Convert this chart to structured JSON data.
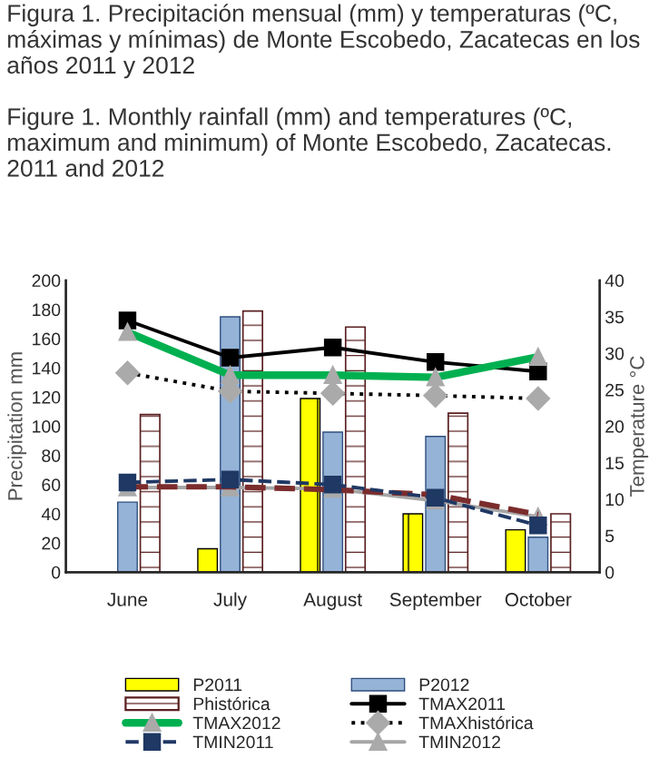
{
  "chart_data": {
    "type": "bar",
    "title": "Figura 1. Precipitación mensual (mm) y temperaturas (ºC, máximas y mínimas) de Monte Escobedo, Zacatecas en los años 2011 y 2012",
    "subtitle": "Figure 1. Monthly rainfall (mm) and temperatures (ºC, maximum and minimum) of Monte Escobedo, Zacatecas. 2011 and 2012",
    "ylabel": "Precipitation mm",
    "y2label": "Temperature °C",
    "categories": [
      "June",
      "July",
      "August",
      "September",
      "October"
    ],
    "ylim": [
      0,
      200
    ],
    "yticks": [
      0,
      20,
      40,
      60,
      80,
      100,
      120,
      140,
      160,
      180,
      200
    ],
    "y2lim": [
      0,
      40
    ],
    "y2ticks": [
      0,
      5,
      10,
      15,
      20,
      25,
      30,
      35,
      40
    ],
    "grid": false,
    "legend": "bottom",
    "series": [
      {
        "name": "P2011",
        "color": "#ffff00",
        "values": [
          null,
          16,
          119,
          40,
          29
        ]
      },
      {
        "name": "P2012",
        "color": "#95b3d7",
        "values": [
          48,
          175,
          96,
          93,
          24
        ]
      },
      {
        "name": "Phistórica",
        "color": "#5a1f1f",
        "values": [
          108,
          179,
          168,
          109,
          40
        ]
      },
      {
        "name": "TMAX2011",
        "type": "line",
        "axis": "y2",
        "color": "#000000",
        "marker": "square",
        "line_style": "solid",
        "values": [
          34.5,
          29.4,
          30.8,
          28.8,
          27.5
        ]
      },
      {
        "name": "TMAX2012",
        "type": "line",
        "axis": "y2",
        "color": "#00b050",
        "marker": "triangle",
        "line_style": "solid",
        "values": [
          32.9,
          27,
          27,
          26.7,
          29.5
        ]
      },
      {
        "name": "TMAXhistórica",
        "type": "line",
        "axis": "y2",
        "color": "#000000",
        "marker": "diamond",
        "line_style": "dotted",
        "values": [
          27.3,
          24.8,
          24.5,
          24.2,
          23.8
        ]
      },
      {
        "name": "TMIN2011",
        "type": "line",
        "axis": "y2",
        "color": "#1f3864",
        "marker": "square",
        "line_style": "dashed",
        "values": [
          12.3,
          12.7,
          12,
          10.2,
          6.4
        ]
      },
      {
        "name": "TMIN2012",
        "type": "line",
        "axis": "y2",
        "color": "#a6a6a6",
        "marker": "triangle",
        "line_style": "solid",
        "values": [
          11.6,
          11.6,
          11.4,
          9.8,
          7.6
        ]
      },
      {
        "type": "line",
        "axis": "y2",
        "color": "#7b2c2c",
        "marker": "none",
        "line_style": "dashed",
        "values": [
          11.7,
          11.7,
          11.3,
          10.6,
          7.9
        ]
      }
    ]
  }
}
